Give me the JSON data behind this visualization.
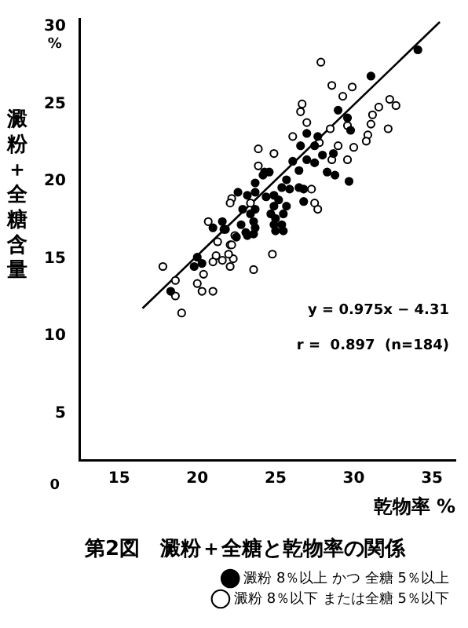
{
  "chart_data": {
    "type": "scatter",
    "title": "第2図　澱粉＋全糖と乾物率の関係",
    "xlabel": "乾物率 %",
    "ylabel": "澱粉＋全糖含量",
    "annotations": [
      "%",
      "0",
      "y = 0.975x − 4.31",
      "r =  0.897  (n=184)"
    ],
    "xlim": [
      12.5,
      36.5
    ],
    "ylim": [
      2,
      30.5
    ],
    "xticks": [
      15,
      20,
      25,
      30,
      35
    ],
    "yticks": [
      5,
      10,
      15,
      20,
      25,
      30
    ],
    "grid": false,
    "legend": "bottom",
    "marker": "circle",
    "series": [
      {
        "name": "澱粉 8％以上 かつ 全糖 5％以上",
        "color": "#000000",
        "x": [
          34.1,
          31.1,
          29.6,
          29.0,
          27.0,
          26.6,
          27.5,
          28.7,
          26.1,
          27.5,
          28.3,
          28.8,
          29.7,
          24.6,
          24.2,
          26.5,
          25.7,
          25.4,
          25.9,
          26.5,
          26.8,
          24.9,
          25.2,
          24.4,
          23.7,
          23.2,
          22.6,
          24.9,
          25.7,
          26.8,
          25.5,
          24.7,
          23.7,
          22.9,
          23.4,
          23.6,
          22.8,
          23.1,
          23.6,
          25.0,
          25.4,
          24.9,
          22.5,
          21.8,
          21.0,
          21.6,
          21.7,
          23.2,
          25.0,
          25.5,
          23.7,
          20.0,
          20.3,
          19.8,
          18.3,
          27.0,
          27.7,
          28.0,
          29.8,
          23.7,
          24.3
        ],
        "values": [
          28.5,
          26.8,
          24.1,
          24.6,
          23.1,
          22.3,
          22.3,
          21.8,
          21.3,
          21.2,
          20.6,
          20.4,
          20.0,
          20.6,
          20.4,
          20.7,
          20.1,
          19.6,
          19.5,
          19.6,
          19.5,
          19.1,
          18.8,
          19.0,
          19.3,
          19.1,
          19.3,
          18.4,
          18.4,
          18.7,
          17.9,
          17.9,
          18.2,
          18.2,
          17.9,
          17.4,
          17.2,
          16.7,
          16.6,
          17.6,
          17.2,
          17.2,
          16.4,
          16.9,
          17.0,
          17.4,
          16.9,
          16.5,
          16.8,
          16.8,
          17.0,
          15.1,
          14.7,
          14.5,
          12.9,
          21.4,
          22.9,
          21.7,
          23.3,
          19.9,
          20.6
        ]
      },
      {
        "name": "澱粉 8％以下 または全糖 5％以下",
        "color": "#ffffff",
        "x": [
          27.9,
          28.6,
          29.9,
          29.3,
          32.3,
          32.7,
          26.7,
          26.6,
          27.0,
          26.1,
          28.5,
          29.6,
          31.2,
          31.1,
          31.6,
          30.9,
          32.2,
          30.0,
          30.8,
          29.6,
          28.6,
          29.0,
          27.8,
          23.9,
          24.9,
          23.9,
          27.3,
          27.5,
          27.7,
          22.2,
          22.1,
          23.4,
          20.7,
          21.3,
          22.1,
          17.8,
          18.6,
          18.6,
          19.0,
          20.0,
          20.3,
          21.0,
          20.4,
          21.2,
          21.0,
          21.6,
          22.1,
          22.3,
          22.0,
          22.2,
          22.4,
          23.6,
          24.8
        ],
        "values": [
          27.7,
          26.2,
          26.1,
          25.5,
          25.3,
          24.9,
          25.0,
          24.5,
          23.8,
          22.9,
          23.4,
          23.6,
          24.3,
          23.7,
          24.8,
          23.0,
          23.4,
          22.2,
          22.6,
          21.4,
          21.4,
          22.3,
          22.5,
          22.1,
          21.8,
          21.0,
          19.5,
          18.6,
          18.2,
          18.9,
          18.6,
          18.6,
          17.4,
          16.1,
          15.9,
          14.5,
          13.6,
          12.6,
          11.5,
          13.4,
          12.9,
          12.9,
          14.0,
          15.2,
          14.8,
          14.9,
          14.5,
          15.0,
          15.3,
          15.9,
          16.5,
          14.3,
          15.3
        ]
      },
      {
        "type": "line",
        "marker": "none",
        "color": "#000000",
        "x": [
          16.5,
          35.5
        ],
        "values": [
          11.8,
          30.3
        ]
      }
    ]
  }
}
